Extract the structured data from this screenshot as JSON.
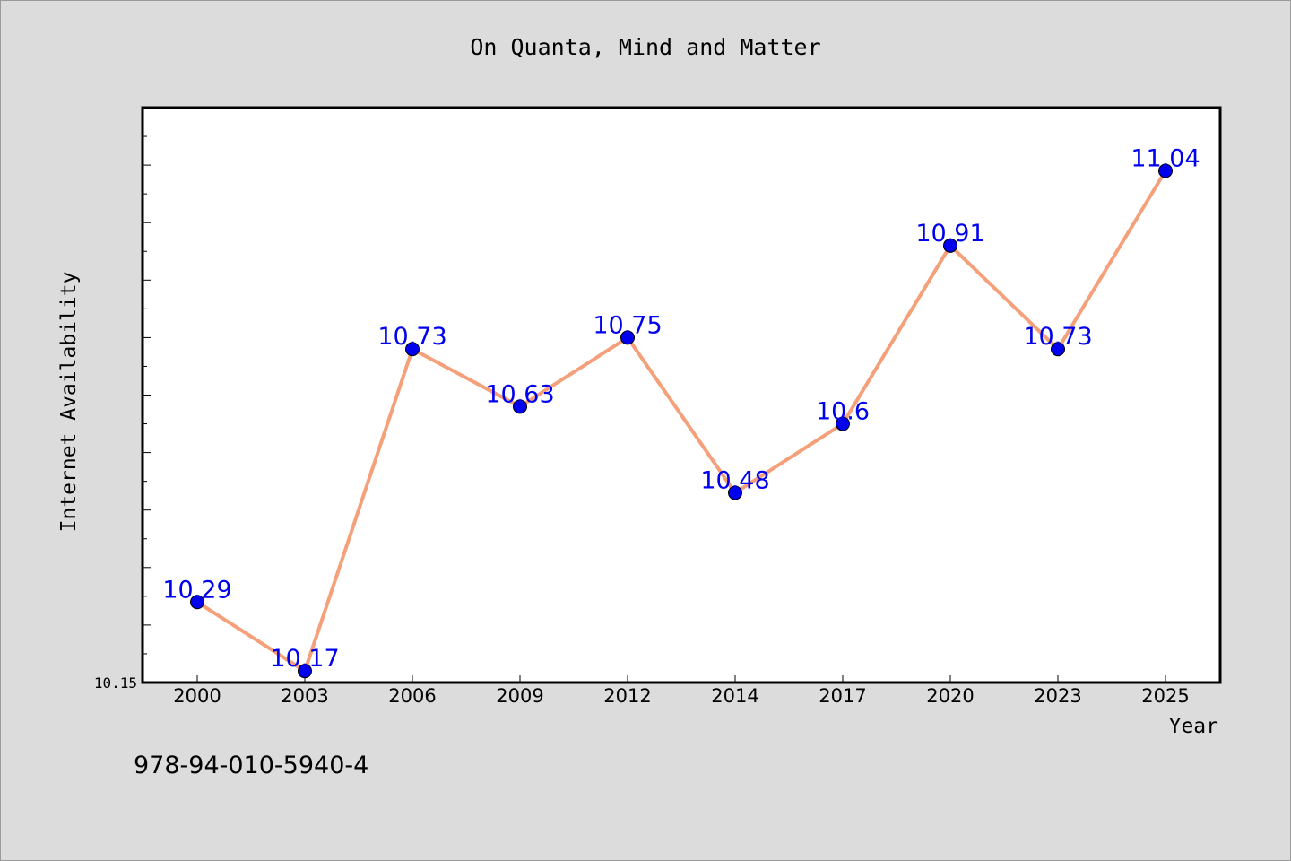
{
  "chart_data": {
    "type": "line",
    "title": "On Quanta, Mind and Matter",
    "xlabel": "Year",
    "ylabel": "Internet Availability",
    "categories": [
      "2000",
      "2003",
      "2006",
      "2009",
      "2012",
      "2014",
      "2017",
      "2020",
      "2023",
      "2025"
    ],
    "series": [
      {
        "values": [
          10.29,
          10.17,
          10.73,
          10.63,
          10.75,
          10.48,
          10.6,
          10.91,
          10.73,
          11.04
        ],
        "line_color": "#f4a07a",
        "marker_color": "#0000ee"
      }
    ],
    "data_labels": [
      "10.29",
      "10.17",
      "10.73",
      "10.63",
      "10.75",
      "10.48",
      "10.6",
      "10.91",
      "10.73",
      "11.04"
    ],
    "ylim": [
      10.15,
      11.15
    ],
    "y_tick_labels": [
      "10.15"
    ],
    "grid": false,
    "legend": "none",
    "plot_background": "#ffffff",
    "figure_background": "#dcdcdc"
  },
  "footer": {
    "isbn": "978-94-010-5940-4"
  }
}
